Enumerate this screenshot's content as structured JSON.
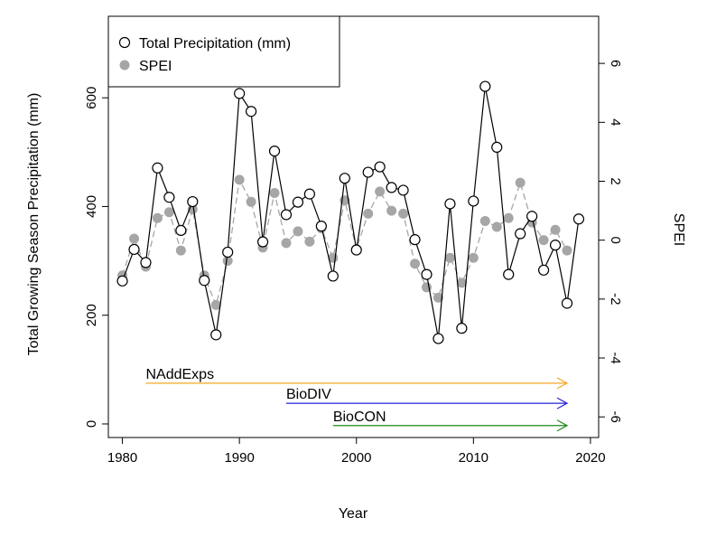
{
  "chart_data": {
    "type": "line",
    "title": "",
    "xlabel": "Year",
    "ylabel": "Total Growing Season Precipitation (mm)",
    "ylabel_right": "SPEI",
    "xlim": [
      1978.8,
      2020.7
    ],
    "ylim": [
      -25,
      750
    ],
    "y2lim": [
      -6.7,
      7.6
    ],
    "x_ticks": [
      1980,
      1990,
      2000,
      2010,
      2020
    ],
    "y_ticks": [
      0,
      200,
      400,
      600
    ],
    "y2_ticks": [
      -6,
      -4,
      -2,
      0,
      2,
      4,
      6
    ],
    "x_tick_labels": [
      "1980",
      "1990",
      "2000",
      "2010",
      "2020"
    ],
    "y_tick_labels": [
      "0",
      "200",
      "400",
      "600"
    ],
    "y2_tick_labels": [
      "-6",
      "-4",
      "-2",
      "0",
      "2",
      "4",
      "6"
    ],
    "legend_position": "top-left",
    "series": [
      {
        "name": "Total Precipitation (mm)",
        "axis": "left",
        "marker": "open-circle",
        "line_style": "solid",
        "color": "#000000",
        "x": [
          1980,
          1981,
          1982,
          1983,
          1984,
          1985,
          1986,
          1987,
          1988,
          1989,
          1990,
          1991,
          1992,
          1993,
          1994,
          1995,
          1996,
          1997,
          1998,
          1999,
          2000,
          2001,
          2002,
          2003,
          2004,
          2005,
          2006,
          2007,
          2008,
          2009,
          2010,
          2011,
          2012,
          2013,
          2014,
          2015,
          2016,
          2017,
          2018,
          2019
        ],
        "values": [
          263,
          321,
          297,
          471,
          417,
          356,
          409,
          264,
          164,
          316,
          608,
          575,
          335,
          502,
          385,
          408,
          423,
          364,
          272,
          452,
          320,
          463,
          473,
          435,
          430,
          339,
          275,
          157,
          405,
          176,
          410,
          621,
          509,
          275,
          350,
          382,
          283,
          329,
          222,
          377
        ]
      },
      {
        "name": "SPEI",
        "axis": "right",
        "marker": "filled-circle",
        "line_style": "dashed",
        "color": "#a6a6a6",
        "x": [
          1980,
          1981,
          1982,
          1983,
          1984,
          1985,
          1986,
          1987,
          1988,
          1989,
          1990,
          1991,
          1992,
          1993,
          1994,
          1995,
          1996,
          1997,
          1998,
          1999,
          2000,
          2001,
          2002,
          2003,
          2004,
          2005,
          2006,
          2007,
          2008,
          2009,
          2010,
          2011,
          2012,
          2013,
          2014,
          2015,
          2016,
          2017,
          2018,
          2019
        ],
        "values": [
          -1.2,
          0.05,
          -0.9,
          0.75,
          0.95,
          -0.35,
          1.05,
          -1.2,
          -2.2,
          -0.7,
          2.05,
          1.3,
          -0.25,
          1.6,
          -0.1,
          0.3,
          -0.05,
          0.4,
          -0.6,
          1.35,
          -0.3,
          0.9,
          1.65,
          1.0,
          0.9,
          -0.8,
          -1.6,
          -1.95,
          -0.6,
          -1.45,
          -0.6,
          0.65,
          0.45,
          0.75,
          1.95,
          0.6,
          0.0,
          0.35,
          -0.35,
          null
        ]
      }
    ],
    "annotations": [
      {
        "label": "NAddExps",
        "start": 1982,
        "end": 2018,
        "y": 75,
        "color": "#f5a623"
      },
      {
        "label": "BioDIV",
        "start": 1994,
        "end": 2018,
        "y": 38,
        "color": "#2323d6"
      },
      {
        "label": "BioCON",
        "start": 1998,
        "end": 2018,
        "y": -3,
        "color": "#1c8a1c"
      }
    ]
  }
}
